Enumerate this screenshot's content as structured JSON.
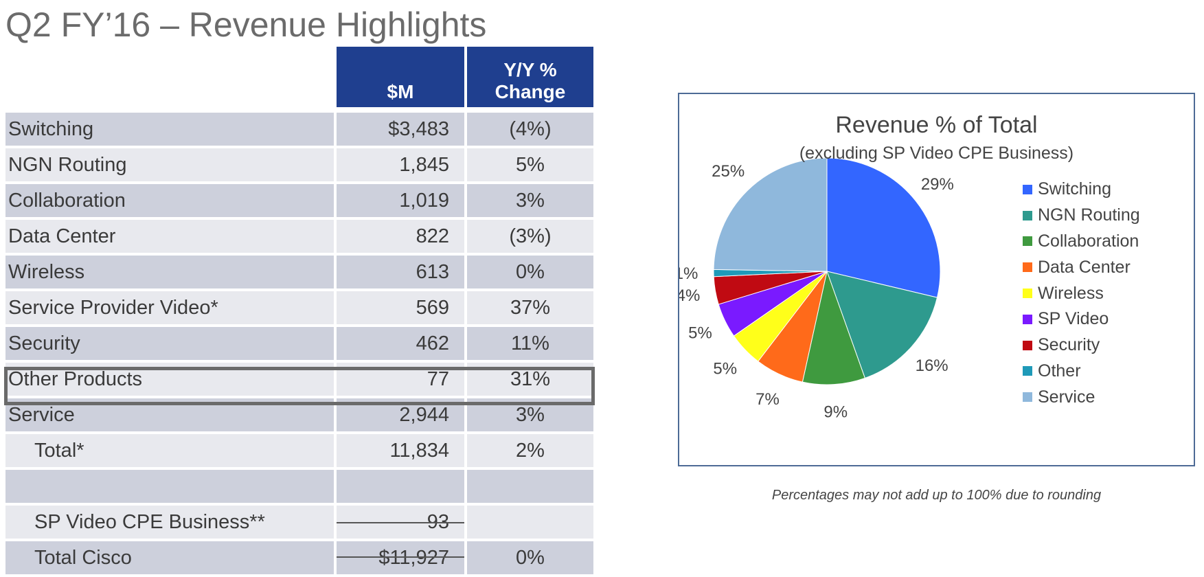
{
  "title": "Q2 FY’16 – Revenue Highlights",
  "table": {
    "col_m": "$M",
    "col_yy_line1": "Y/Y %",
    "col_yy_line2": "Change",
    "rows": [
      {
        "label": "Switching",
        "m": "$3,483",
        "yy": "(4%)"
      },
      {
        "label": "NGN Routing",
        "m": "1,845",
        "yy": "5%"
      },
      {
        "label": "Collaboration",
        "m": "1,019",
        "yy": "3%"
      },
      {
        "label": "Data Center",
        "m": "822",
        "yy": "(3%)"
      },
      {
        "label": "Wireless",
        "m": "613",
        "yy": "0%"
      },
      {
        "label": "Service Provider Video*",
        "m": "569",
        "yy": "37%"
      },
      {
        "label": "Security",
        "m": "462",
        "yy": "11%"
      },
      {
        "label": "Other Products",
        "m": "77",
        "yy": "31%"
      },
      {
        "label": "Service",
        "m": "2,944",
        "yy": "3%"
      },
      {
        "label": "Total*",
        "m": "11,834",
        "yy": "2%"
      },
      {
        "label": "",
        "m": "",
        "yy": ""
      },
      {
        "label": "SP Video CPE Business**",
        "m": "93",
        "yy": ""
      },
      {
        "label": "Total Cisco",
        "m": "$11,927",
        "yy": "0%"
      }
    ]
  },
  "chart_data": {
    "type": "pie",
    "title": "Revenue % of Total",
    "subtitle": "(excluding SP Video CPE Business)",
    "slices": [
      {
        "name": "Switching",
        "value": 29,
        "label": "29%",
        "color": "#3366ff"
      },
      {
        "name": "NGN Routing",
        "value": 16,
        "label": "16%",
        "color": "#2e9a8e"
      },
      {
        "name": "Collaboration",
        "value": 9,
        "label": "9%",
        "color": "#3f9a3f"
      },
      {
        "name": "Data Center",
        "value": 7,
        "label": "7%",
        "color": "#ff6a1a"
      },
      {
        "name": "Wireless",
        "value": 5,
        "label": "5%",
        "color": "#ffff1a"
      },
      {
        "name": "SP Video",
        "value": 5,
        "label": "5%",
        "color": "#7a1aff"
      },
      {
        "name": "Security",
        "value": 4,
        "label": "4%",
        "color": "#c00a12"
      },
      {
        "name": "Other",
        "value": 1,
        "label": "1%",
        "color": "#1f9ab8"
      },
      {
        "name": "Service",
        "value": 25,
        "label": "25%",
        "color": "#8fb8dc"
      }
    ],
    "legend_position": "right"
  },
  "footnote": "Percentages may not add up to 100% due to rounding"
}
